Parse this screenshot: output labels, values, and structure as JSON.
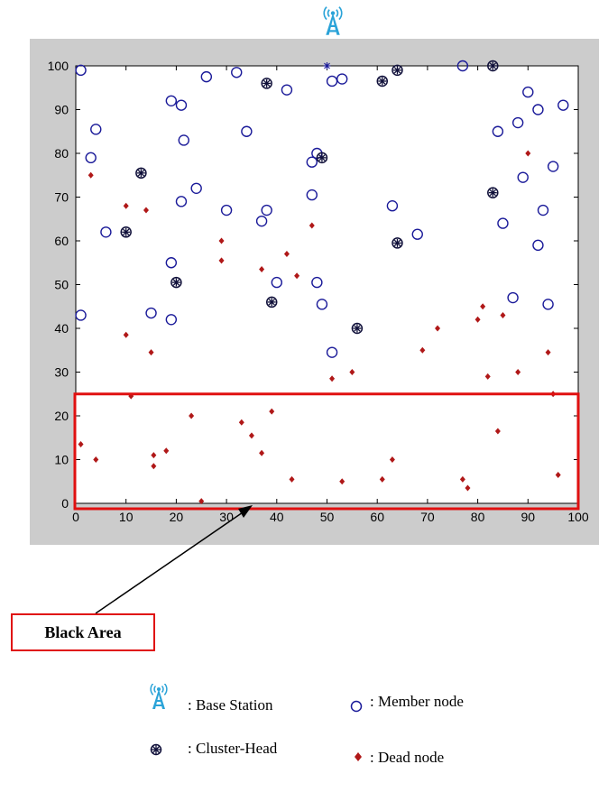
{
  "chart_data": {
    "type": "scatter",
    "title": "",
    "xlabel": "",
    "ylabel": "",
    "xlim": [
      0,
      100
    ],
    "ylim": [
      0,
      100
    ],
    "x_ticks": [
      "0",
      "10",
      "20",
      "30",
      "40",
      "50",
      "60",
      "70",
      "80",
      "90",
      "100"
    ],
    "y_ticks": [
      "0",
      "10",
      "20",
      "30",
      "40",
      "50",
      "60",
      "70",
      "80",
      "90",
      "100"
    ],
    "grid": false,
    "colors": {
      "member": "#1a1a99",
      "cluster_head": "#10103a",
      "dead": "#b01818",
      "frame": "#cccccc",
      "highlight": "#e01010",
      "antenna": "#2aa3d8"
    },
    "series": [
      {
        "key": "member",
        "points": [
          [
            1,
            99
          ],
          [
            3,
            79
          ],
          [
            4,
            85.5
          ],
          [
            6,
            62
          ],
          [
            1,
            43
          ],
          [
            15,
            43.5
          ],
          [
            19,
            55
          ],
          [
            19,
            42
          ],
          [
            19,
            92
          ],
          [
            21,
            91
          ],
          [
            21.5,
            83
          ],
          [
            21,
            69
          ],
          [
            24,
            72
          ],
          [
            26,
            97.5
          ],
          [
            30,
            67
          ],
          [
            32,
            98.5
          ],
          [
            34,
            85
          ],
          [
            37,
            64.5
          ],
          [
            38,
            67
          ],
          [
            40,
            50.5
          ],
          [
            42,
            94.5
          ],
          [
            47,
            78
          ],
          [
            47,
            70.5
          ],
          [
            48,
            80
          ],
          [
            48,
            50.5
          ],
          [
            49,
            45.5
          ],
          [
            51,
            96.5
          ],
          [
            53,
            97
          ],
          [
            51,
            34.5
          ],
          [
            63,
            68
          ],
          [
            68,
            61.5
          ],
          [
            77,
            100
          ],
          [
            84,
            85
          ],
          [
            85,
            64
          ],
          [
            87,
            47
          ],
          [
            88,
            87
          ],
          [
            89,
            74.5
          ],
          [
            90,
            94
          ],
          [
            92,
            90
          ],
          [
            92,
            59
          ],
          [
            93,
            67
          ],
          [
            94,
            45.5
          ],
          [
            95,
            77
          ],
          [
            97,
            91
          ]
        ]
      },
      {
        "key": "cluster_head",
        "points": [
          [
            10,
            62
          ],
          [
            13,
            75.5
          ],
          [
            20,
            50.5
          ],
          [
            38,
            96
          ],
          [
            39,
            46
          ],
          [
            49,
            79
          ],
          [
            56,
            40
          ],
          [
            61,
            96.5
          ],
          [
            64,
            59.5
          ],
          [
            64,
            99
          ],
          [
            83,
            100
          ],
          [
            83,
            71
          ]
        ]
      },
      {
        "key": "dead",
        "points": [
          [
            3,
            75
          ],
          [
            10,
            68
          ],
          [
            14,
            67
          ],
          [
            10,
            38.5
          ],
          [
            15,
            34.5
          ],
          [
            11,
            24.5
          ],
          [
            29,
            60
          ],
          [
            29,
            55.5
          ],
          [
            37,
            53.5
          ],
          [
            42,
            57
          ],
          [
            44,
            52
          ],
          [
            47,
            63.5
          ],
          [
            51,
            28.5
          ],
          [
            55,
            30
          ],
          [
            69,
            35
          ],
          [
            72,
            40
          ],
          [
            80,
            42
          ],
          [
            81,
            45
          ],
          [
            82,
            29
          ],
          [
            85,
            43
          ],
          [
            88,
            30
          ],
          [
            90,
            80
          ],
          [
            94,
            34.5
          ],
          [
            95,
            25
          ],
          [
            1,
            13.5
          ],
          [
            4,
            10
          ],
          [
            15.5,
            11
          ],
          [
            15.5,
            8.5
          ],
          [
            18,
            12
          ],
          [
            23,
            20
          ],
          [
            25,
            0.5
          ],
          [
            33,
            18.5
          ],
          [
            35,
            15.5
          ],
          [
            37,
            11.5
          ],
          [
            39,
            21
          ],
          [
            43,
            5.5
          ],
          [
            53,
            5
          ],
          [
            61,
            5.5
          ],
          [
            63,
            10
          ],
          [
            77,
            5.5
          ],
          [
            78,
            3.5
          ],
          [
            84,
            16.5
          ],
          [
            96,
            6.5
          ]
        ]
      }
    ],
    "base_station": [
      50,
      100
    ],
    "highlight_region": {
      "x": [
        0,
        100
      ],
      "y": [
        0,
        25
      ]
    }
  },
  "annotation": {
    "label": "Black Area"
  },
  "legend": {
    "items": [
      {
        "key": "base_station",
        "icon": "antenna-icon",
        "label": ": Base Station"
      },
      {
        "key": "member",
        "icon": "open-circle-icon",
        "label": ": Member node"
      },
      {
        "key": "cluster_head",
        "icon": "asterisk-circle-icon",
        "label": ": Cluster-Head"
      },
      {
        "key": "dead",
        "icon": "red-diamond-icon",
        "label": ": Dead node"
      }
    ]
  }
}
